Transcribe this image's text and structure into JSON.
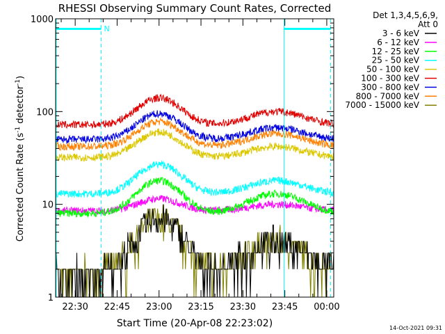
{
  "chart_data": {
    "type": "line",
    "title": "RHESSI Observing Summary Count Rates, Corrected",
    "xlabel": "Start Time (20-Apr-08 22:23:02)",
    "ylabel_parts": [
      "Corrected Count Rate (s",
      "-1",
      " detector",
      "-1",
      ")"
    ],
    "yscale": "log",
    "ylim": [
      1,
      1000
    ],
    "xlim_minutes_after_2215": [
      8.0,
      107.5
    ],
    "yticks": [
      {
        "value": 1,
        "label": "1"
      },
      {
        "value": 10,
        "label": "10"
      },
      {
        "value": 100,
        "label": "100"
      },
      {
        "value": 1000,
        "label": "1000"
      }
    ],
    "xticks": [
      {
        "minute": 15,
        "label": "22:30"
      },
      {
        "minute": 30,
        "label": "22:45"
      },
      {
        "minute": 45,
        "label": "23:00"
      },
      {
        "minute": 60,
        "label": "23:15"
      },
      {
        "minute": 75,
        "label": "23:30"
      },
      {
        "minute": 90,
        "label": "23:45"
      },
      {
        "minute": 105,
        "label": "00:00"
      }
    ],
    "legend": {
      "position": "right",
      "header": [
        "Det 1,3,4,5,6,9,",
        "Att 0"
      ],
      "entries": [
        {
          "label": "3 - 6 keV",
          "color": "#000000"
        },
        {
          "label": "6 - 12 keV",
          "color": "#ff00ff"
        },
        {
          "label": "12 - 25 keV",
          "color": "#00ff00"
        },
        {
          "label": "25 - 50 keV",
          "color": "#00ffff"
        },
        {
          "label": "50 - 100 keV",
          "color": "#dcc800"
        },
        {
          "label": "100 - 300 keV",
          "color": "#e00000"
        },
        {
          "label": "300 - 800 keV",
          "color": "#0000e0"
        },
        {
          "label": "800 - 7000 keV",
          "color": "#ff8000"
        },
        {
          "label": "7000 - 15000 keV",
          "color": "#808000"
        }
      ]
    },
    "series": [
      {
        "name": "100 - 300 keV",
        "color": "#e00000",
        "base": 72,
        "peak1": 140,
        "peak2": 100
      },
      {
        "name": "300 - 800 keV",
        "color": "#0000e0",
        "base": 50,
        "peak1": 95,
        "peak2": 67
      },
      {
        "name": "800 - 7000 keV",
        "color": "#ff8000",
        "base": 42,
        "peak1": 78,
        "peak2": 58
      },
      {
        "name": "50 - 100 keV",
        "color": "#dcc800",
        "base": 32,
        "peak1": 60,
        "peak2": 42
      },
      {
        "name": "25 - 50 keV",
        "color": "#00ffff",
        "base": 13,
        "peak1": 27,
        "peak2": 18
      },
      {
        "name": "12 - 25 keV",
        "color": "#00ff00",
        "base": 8,
        "peak1": 18,
        "peak2": 13
      },
      {
        "name": "6 - 12 keV",
        "color": "#ff00ff",
        "base": 8.5,
        "peak1": 11.5,
        "peak2": 10
      },
      {
        "name": "3 - 6 keV",
        "color": "#000000",
        "base": 1.8,
        "peak1": 7,
        "peak2": 4,
        "step": true
      },
      {
        "name": "7000 - 15000 keV",
        "color": "#808000",
        "base": 1.8,
        "peak1": 7,
        "peak2": 4,
        "step": true
      }
    ],
    "peak_times_minutes": [
      45,
      87
    ],
    "markers": {
      "flag_label": "N",
      "solid_lines_minutes": [
        8.2,
        89.7
      ],
      "dashed_lines_minutes": [
        24.3,
        106.4
      ],
      "flag_bars_minutes": [
        [
          8.2,
          24.3
        ],
        [
          89.7,
          106.4
        ]
      ],
      "color": "#00ffff"
    },
    "footer": "14-Oct-2021 09:31"
  }
}
